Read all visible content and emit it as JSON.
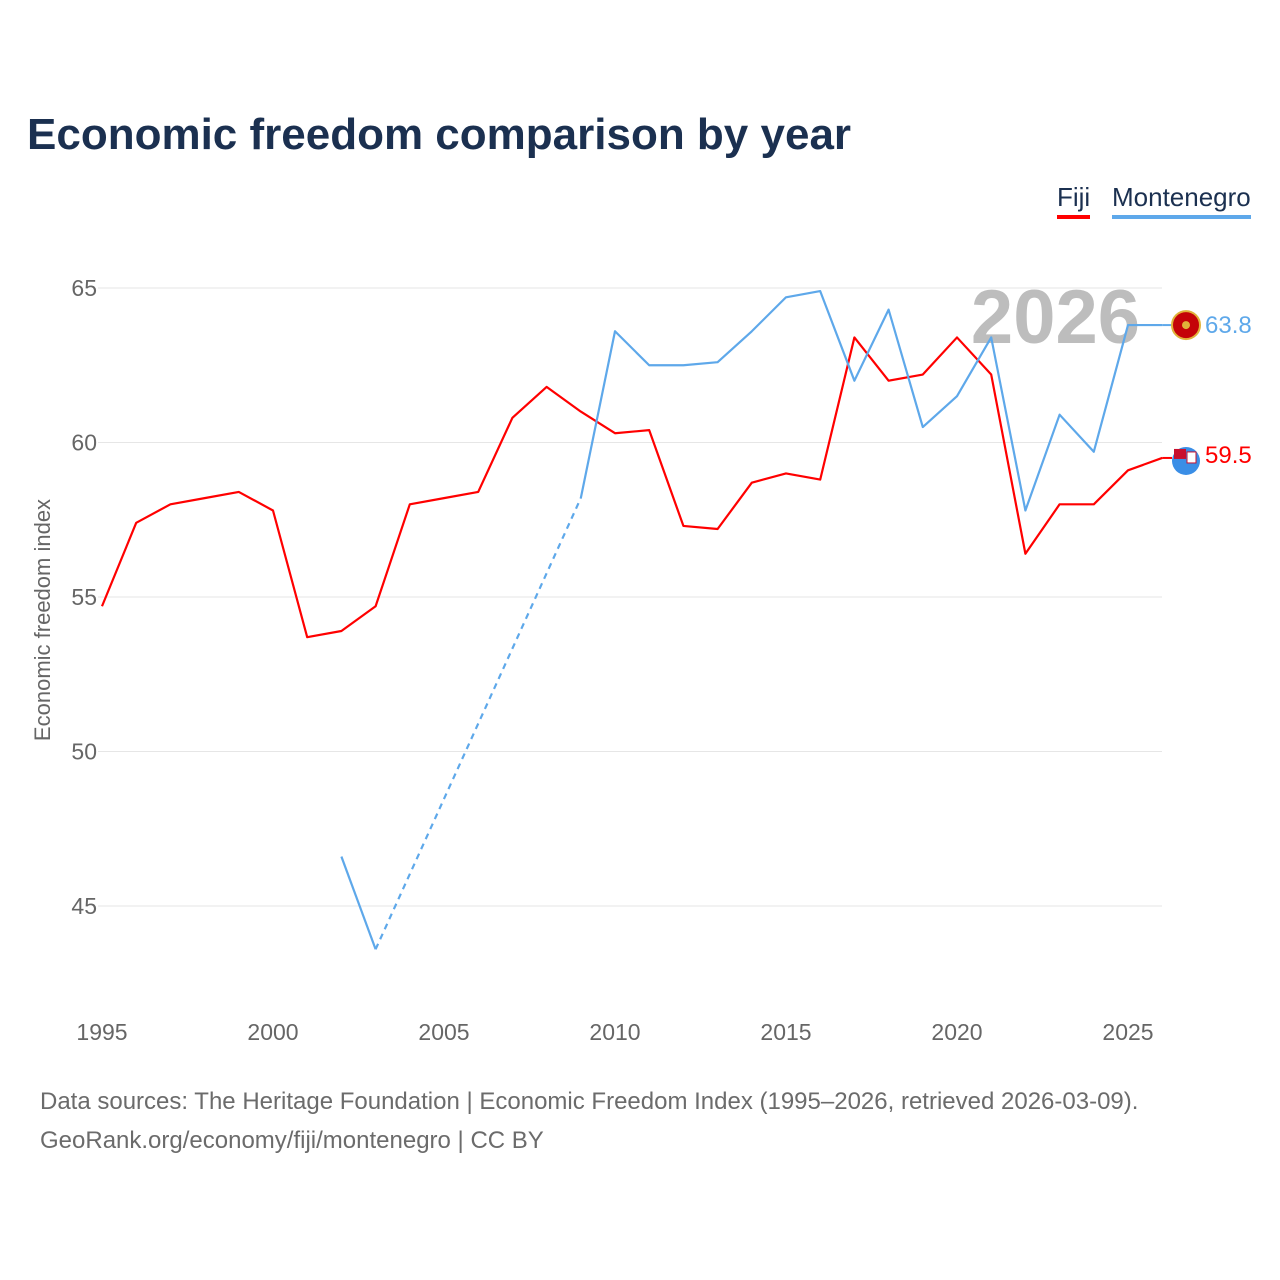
{
  "chart_data": {
    "type": "line",
    "title": "Economic freedom comparison by year",
    "xlabel": "",
    "ylabel": "Economic freedom index",
    "xlim": [
      1995,
      2026
    ],
    "ylim": [
      42,
      67
    ],
    "x_ticks": [
      1995,
      2000,
      2005,
      2010,
      2015,
      2020,
      2025
    ],
    "y_ticks": [
      45,
      50,
      55,
      60,
      65
    ],
    "grid": true,
    "legend_position": "top-right",
    "watermark_year": "2026",
    "x": [
      1995,
      1996,
      1997,
      1998,
      1999,
      2000,
      2001,
      2002,
      2003,
      2004,
      2005,
      2006,
      2007,
      2008,
      2009,
      2010,
      2011,
      2012,
      2013,
      2014,
      2015,
      2016,
      2017,
      2018,
      2019,
      2020,
      2021,
      2022,
      2023,
      2024,
      2025,
      2026
    ],
    "series": [
      {
        "name": "Fiji",
        "color": "#ff0000",
        "end_label": "59.5",
        "values": [
          54.7,
          57.4,
          58.0,
          58.2,
          58.4,
          57.8,
          53.7,
          53.9,
          54.7,
          58.0,
          58.2,
          58.4,
          60.8,
          61.8,
          61.0,
          60.3,
          60.4,
          57.3,
          57.2,
          58.7,
          59.0,
          58.8,
          63.4,
          62.0,
          62.2,
          63.4,
          62.2,
          56.4,
          58.0,
          58.0,
          59.1,
          59.5
        ]
      },
      {
        "name": "Montenegro",
        "color": "#5ea8ea",
        "end_label": "63.8",
        "values": [
          null,
          null,
          null,
          null,
          null,
          null,
          null,
          46.6,
          43.6,
          null,
          null,
          null,
          null,
          null,
          58.2,
          63.6,
          62.5,
          62.5,
          62.6,
          63.6,
          64.7,
          64.9,
          62.0,
          64.3,
          60.5,
          61.5,
          63.4,
          57.8,
          60.9,
          59.7,
          63.8,
          63.8
        ]
      }
    ]
  },
  "footer": {
    "line1": "Data sources: The Heritage Foundation | Economic Freedom Index (1995–2026, retrieved 2026-03-09).",
    "line2": "GeoRank.org/economy/fiji/montenegro | CC BY"
  }
}
